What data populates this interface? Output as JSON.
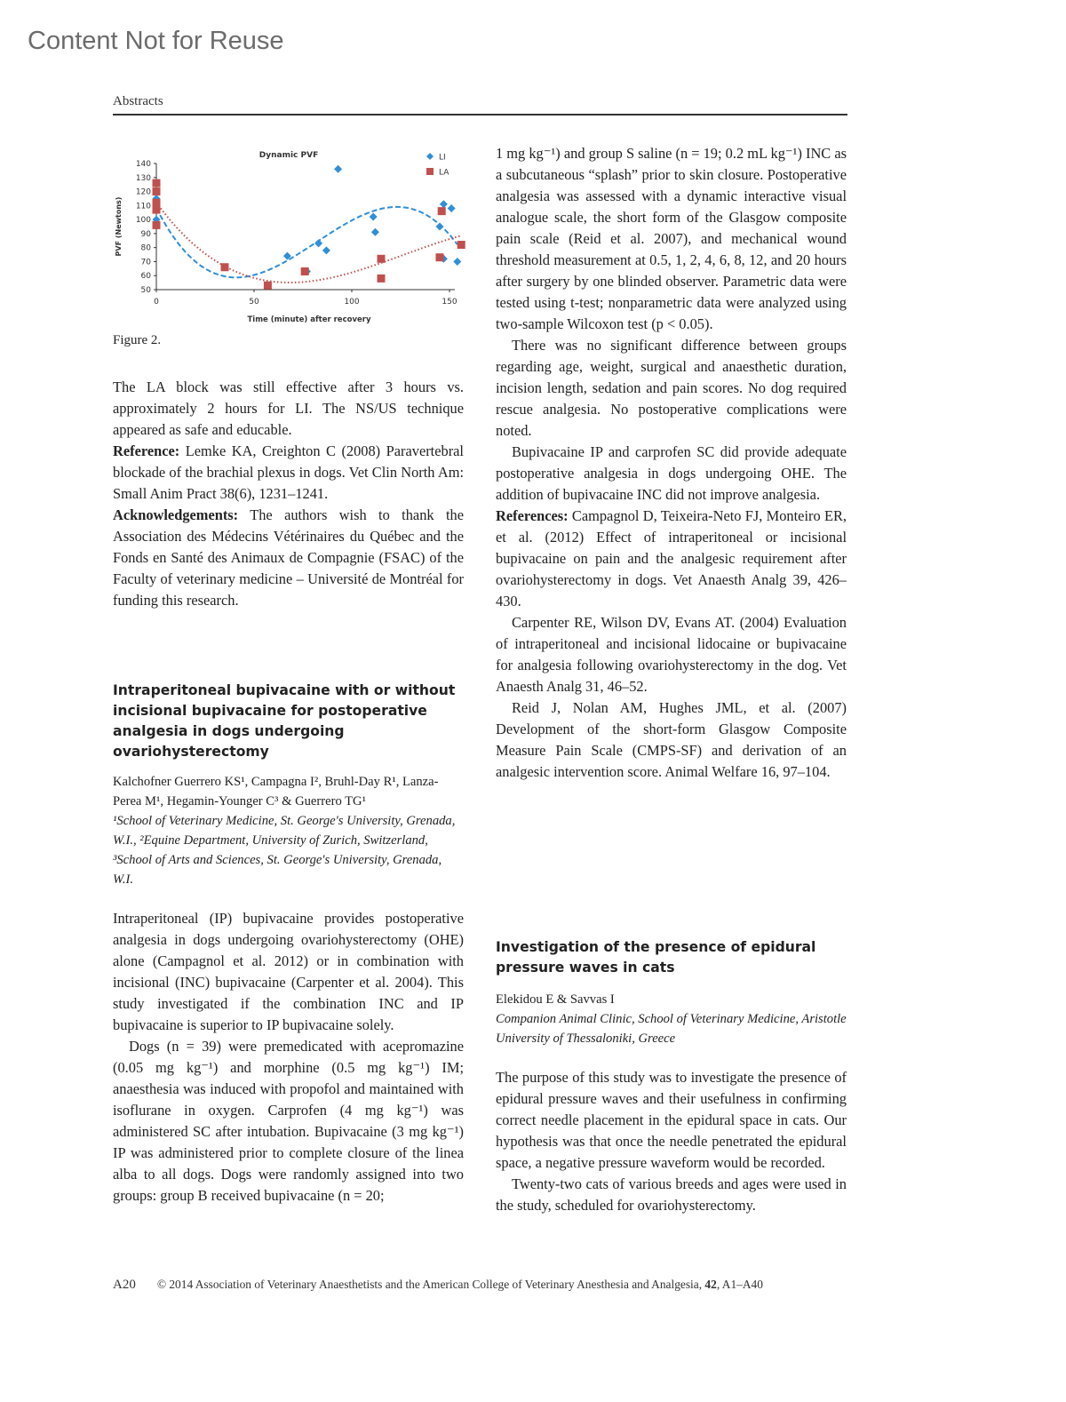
{
  "watermark": "Content Not for Reuse",
  "running_head": "Abstracts",
  "figure_label": "Figure 2.",
  "chart_data": {
    "type": "scatter",
    "title": "Dynamic PVF",
    "xlabel": "Time (minute) after recovery",
    "ylabel": "PVF (Newtons)",
    "xlim": [
      0,
      155
    ],
    "ylim": [
      50,
      140
    ],
    "xticks": [
      0,
      50,
      100,
      150
    ],
    "yticks": [
      50,
      60,
      70,
      80,
      90,
      100,
      110,
      120,
      130,
      140
    ],
    "grid": false,
    "legend_position": "top-right",
    "trendline": "polynomial order 3",
    "series": [
      {
        "name": "LI",
        "marker": "diamond",
        "color": "#2f8fd8",
        "trend_style": "dashed",
        "points": [
          [
            0,
            100
          ],
          [
            0,
            110
          ],
          [
            0,
            115
          ],
          [
            67,
            74
          ],
          [
            77,
            63
          ],
          [
            83,
            83
          ],
          [
            87,
            78
          ],
          [
            93,
            136
          ],
          [
            111,
            102
          ],
          [
            112,
            91
          ],
          [
            145,
            95
          ],
          [
            147,
            111
          ],
          [
            147,
            72
          ],
          [
            151,
            108
          ],
          [
            154,
            70
          ]
        ]
      },
      {
        "name": "LA",
        "marker": "square",
        "color": "#c0504d",
        "trend_style": "dotted",
        "points": [
          [
            0,
            126
          ],
          [
            0,
            120
          ],
          [
            0,
            112
          ],
          [
            0,
            107
          ],
          [
            0,
            96
          ],
          [
            35,
            66
          ],
          [
            57,
            53
          ],
          [
            76,
            63
          ],
          [
            115,
            72
          ],
          [
            115,
            58
          ],
          [
            145,
            73
          ],
          [
            146,
            106
          ],
          [
            156,
            82
          ]
        ]
      }
    ]
  },
  "left": {
    "p1": "The LA block was still effective after 3 hours vs. approximately 2 hours for LI. The NS/US technique appeared as safe and educable.",
    "ref_lead": "Reference:",
    "ref_text": " Lemke KA, Creighton C (2008) Paravertebral blockade of the brachial plexus in dogs. Vet Clin North Am: Small Anim Pract 38(6), 1231–1241.",
    "ack_lead": "Acknowledgements:",
    "ack_text": " The authors wish to thank the Association des Médecins Vétérinaires du Québec and the Fonds en Santé des Animaux de Compagnie (FSAC) of the Faculty of veterinary medicine – Université de Montréal for funding this research.",
    "title": "Intraperitoneal bupivacaine with or without incisional bupivacaine for postoperative analgesia in dogs undergoing ovariohysterectomy",
    "authors": "Kalchofner Guerrero KS¹, Campagna I², Bruhl-Day R¹, Lanza-Perea M¹, Hegamin-Younger C³ & Guerrero TG¹",
    "affiliations": "¹School of Veterinary Medicine, St. George's University, Grenada, W.I., ²Equine Department, University of Zurich, Switzerland, ³School of Arts and Sciences, St. George's University, Grenada, W.I.",
    "body1": "Intraperitoneal (IP) bupivacaine provides postoperative analgesia in dogs undergoing ovariohysterectomy (OHE) alone (Campagnol et al. 2012) or in combination with incisional (INC) bupivacaine (Carpenter et al. 2004). This study investigated if the combination INC and IP bupivacaine is superior to IP bupivacaine solely.",
    "body2": "Dogs (n = 39) were premedicated with acepromazine (0.05 mg kg⁻¹) and morphine (0.5 mg kg⁻¹) IM; anaesthesia was induced with propofol and maintained with isoflurane in oxygen. Carprofen (4 mg kg⁻¹) was administered SC after intubation. Bupivacaine (3 mg kg⁻¹) IP was administered prior to complete closure of the linea alba to all dogs. Dogs were randomly assigned into two groups: group B received bupivacaine (n = 20;"
  },
  "right": {
    "p1": "1 mg kg⁻¹) and group S saline (n = 19; 0.2 mL kg⁻¹) INC as a subcutaneous “splash” prior to skin closure. Postoperative analgesia was assessed with a dynamic interactive visual analogue scale, the short form of the Glasgow composite pain scale (Reid et al. 2007), and mechanical wound threshold measurement at 0.5, 1, 2, 4, 6, 8, 12, and 20 hours after surgery by one blinded observer. Parametric data were tested using t-test; nonparametric data were analyzed using two-sample Wilcoxon test (p < 0.05).",
    "p2": "There was no significant difference between groups regarding age, weight, surgical and anaesthetic duration, incision length, sedation and pain scores. No dog required rescue analgesia. No postoperative complications were noted.",
    "p3": "Bupivacaine IP and carprofen SC did provide adequate postoperative analgesia in dogs undergoing OHE. The addition of bupivacaine INC did not improve analgesia.",
    "refs_lead": "References:",
    "ref1": " Campagnol D, Teixeira-Neto FJ, Monteiro ER, et al. (2012) Effect of intraperitoneal or incisional bupivacaine on pain and the analgesic requirement after ovariohysterectomy in dogs. Vet Anaesth Analg 39, 426–430.",
    "ref2": "Carpenter RE, Wilson DV, Evans AT. (2004) Evaluation of intraperitoneal and incisional lidocaine or bupivacaine for analgesia following ovariohysterectomy in the dog. Vet Anaesth Analg 31, 46–52.",
    "ref3": "Reid J, Nolan AM, Hughes JML, et al. (2007) Development of the short-form Glasgow Composite Measure Pain Scale (CMPS-SF) and derivation of an analgesic intervention score. Animal Welfare 16, 97–104.",
    "title": "Investigation of the presence of epidural pressure waves in cats",
    "authors": "Elekidou E & Savvas I",
    "affiliations": "Companion Animal Clinic, School of Veterinary Medicine, Aristotle University of Thessaloniki, Greece",
    "body1": "The purpose of this study was to investigate the presence of epidural pressure waves and their usefulness in confirming correct needle placement in the epidural space in cats. Our hypothesis was that once the needle penetrated the epidural space, a negative pressure waveform would be recorded.",
    "body2": "Twenty-two cats of various breeds and ages were used in the study, scheduled for ovariohysterectomy."
  },
  "footer": {
    "page": "A20",
    "copyright": "© 2014 Association of Veterinary Anaesthetists and the American College of Veterinary Anesthesia and Analgesia, ",
    "volume": "42",
    "pages": ", A1–A40"
  }
}
